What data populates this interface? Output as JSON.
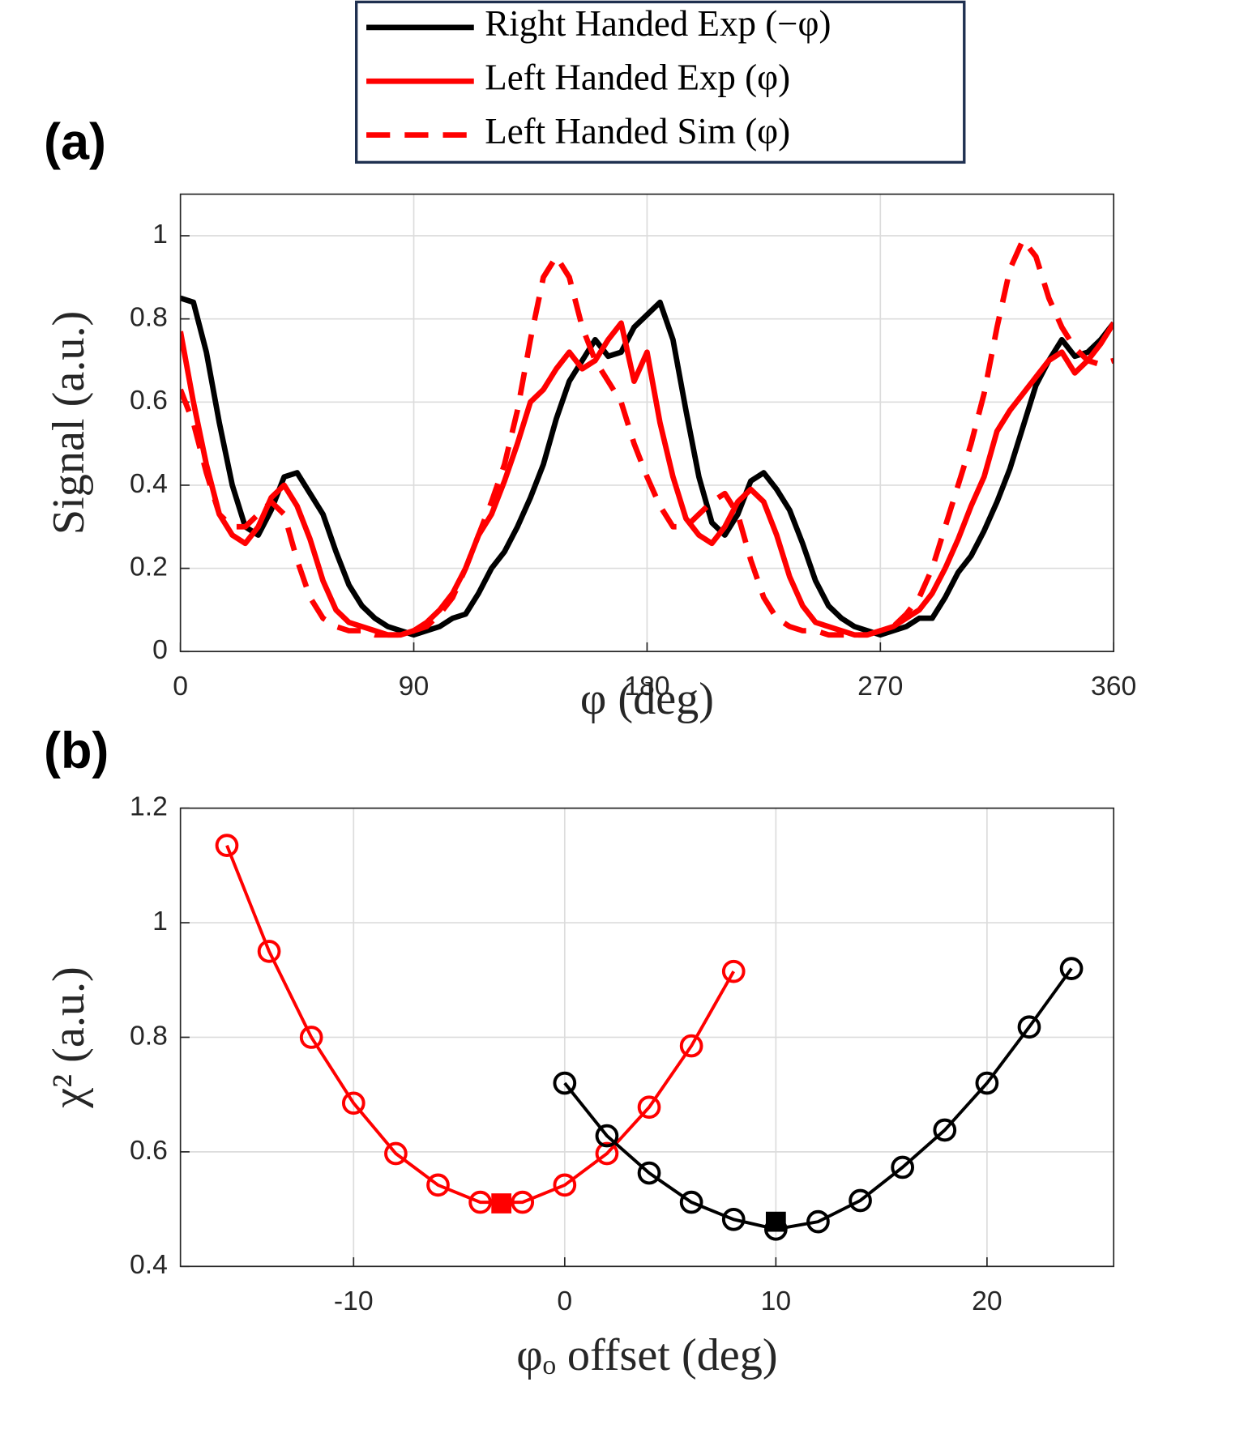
{
  "chart_data": [
    {
      "type": "line",
      "panel_label": "(a)",
      "x_label": "φ (deg)",
      "y_label": "Signal (a.u.)",
      "xlim": [
        0,
        360
      ],
      "ylim": [
        0,
        1.1
      ],
      "xticks": [
        0,
        90,
        180,
        270,
        360
      ],
      "yticks": [
        0,
        0.2,
        0.4,
        0.6,
        0.8,
        1
      ],
      "grid": true,
      "legend": "top",
      "x": [
        0,
        5,
        10,
        15,
        20,
        25,
        30,
        35,
        40,
        45,
        50,
        55,
        60,
        65,
        70,
        75,
        80,
        85,
        90,
        95,
        100,
        105,
        110,
        115,
        120,
        125,
        130,
        135,
        140,
        145,
        150,
        155,
        160,
        165,
        170,
        175,
        180,
        185,
        190,
        195,
        200,
        205,
        210,
        215,
        220,
        225,
        230,
        235,
        240,
        245,
        250,
        255,
        260,
        265,
        270,
        275,
        280,
        285,
        290,
        295,
        300,
        305,
        310,
        315,
        320,
        325,
        330,
        335,
        340,
        345,
        350,
        355,
        360
      ],
      "series": [
        {
          "name": "Right Handed Exp (−φ)",
          "color": "#000000",
          "style": "solid",
          "values": [
            0.85,
            0.84,
            0.72,
            0.55,
            0.4,
            0.3,
            0.28,
            0.34,
            0.42,
            0.43,
            0.38,
            0.33,
            0.24,
            0.16,
            0.11,
            0.08,
            0.06,
            0.05,
            0.04,
            0.05,
            0.06,
            0.08,
            0.09,
            0.14,
            0.2,
            0.24,
            0.3,
            0.37,
            0.45,
            0.56,
            0.65,
            0.7,
            0.75,
            0.71,
            0.72,
            0.78,
            0.81,
            0.84,
            0.75,
            0.58,
            0.42,
            0.31,
            0.28,
            0.33,
            0.41,
            0.43,
            0.39,
            0.34,
            0.26,
            0.17,
            0.11,
            0.08,
            0.06,
            0.05,
            0.04,
            0.05,
            0.06,
            0.08,
            0.08,
            0.13,
            0.19,
            0.23,
            0.29,
            0.36,
            0.44,
            0.54,
            0.64,
            0.7,
            0.75,
            0.71,
            0.72,
            0.75,
            0.79
          ]
        },
        {
          "name": "Left Handed Exp (φ)",
          "color": "#ff0000",
          "style": "solid",
          "values": [
            0.77,
            0.6,
            0.45,
            0.33,
            0.28,
            0.26,
            0.3,
            0.37,
            0.4,
            0.35,
            0.27,
            0.17,
            0.1,
            0.07,
            0.06,
            0.05,
            0.04,
            0.04,
            0.05,
            0.07,
            0.1,
            0.14,
            0.2,
            0.28,
            0.33,
            0.41,
            0.5,
            0.6,
            0.63,
            0.68,
            0.72,
            0.68,
            0.7,
            0.75,
            0.79,
            0.65,
            0.72,
            0.55,
            0.42,
            0.32,
            0.28,
            0.26,
            0.3,
            0.36,
            0.39,
            0.36,
            0.28,
            0.18,
            0.11,
            0.07,
            0.06,
            0.05,
            0.04,
            0.04,
            0.05,
            0.06,
            0.08,
            0.1,
            0.14,
            0.2,
            0.27,
            0.35,
            0.42,
            0.53,
            0.58,
            0.62,
            0.66,
            0.7,
            0.72,
            0.67,
            0.7,
            0.74,
            0.79
          ]
        },
        {
          "name": "Left Handed Sim (φ)",
          "color": "#ff0000",
          "style": "dashed",
          "values": [
            0.63,
            0.55,
            0.43,
            0.33,
            0.3,
            0.3,
            0.33,
            0.36,
            0.33,
            0.22,
            0.13,
            0.08,
            0.06,
            0.05,
            0.05,
            0.04,
            0.04,
            0.04,
            0.05,
            0.06,
            0.09,
            0.13,
            0.2,
            0.28,
            0.36,
            0.45,
            0.58,
            0.75,
            0.9,
            0.95,
            0.9,
            0.78,
            0.7,
            0.65,
            0.6,
            0.5,
            0.42,
            0.35,
            0.3,
            0.3,
            0.33,
            0.36,
            0.38,
            0.33,
            0.22,
            0.13,
            0.08,
            0.06,
            0.05,
            0.05,
            0.04,
            0.04,
            0.04,
            0.04,
            0.05,
            0.06,
            0.09,
            0.13,
            0.2,
            0.3,
            0.4,
            0.5,
            0.62,
            0.78,
            0.92,
            0.99,
            0.95,
            0.85,
            0.78,
            0.73,
            0.7,
            0.69,
            0.7
          ]
        }
      ]
    },
    {
      "type": "scatter",
      "panel_label": "(b)",
      "x_label": "φₒ offset (deg)",
      "y_label": "χ² (a.u.)",
      "xlim": [
        -18.2,
        26
      ],
      "ylim": [
        0.4,
        1.2
      ],
      "xticks": [
        -10,
        0,
        10,
        20
      ],
      "yticks": [
        0.4,
        0.6,
        0.8,
        1,
        1.2
      ],
      "grid": true,
      "series": [
        {
          "color": "#ff0000",
          "marker": "circle",
          "line": true,
          "x": [
            -16,
            -14,
            -12,
            -10,
            -8,
            -6,
            -4,
            -2,
            0,
            2,
            4,
            6,
            8
          ],
          "values": [
            1.135,
            0.95,
            0.8,
            0.685,
            0.597,
            0.542,
            0.512,
            0.512,
            0.542,
            0.597,
            0.678,
            0.785,
            0.915
          ]
        },
        {
          "color": "#000000",
          "marker": "circle",
          "line": true,
          "x": [
            0,
            2,
            4,
            6,
            8,
            10,
            12,
            14,
            16,
            18,
            20,
            22,
            24
          ],
          "values": [
            0.72,
            0.628,
            0.563,
            0.512,
            0.482,
            0.465,
            0.478,
            0.515,
            0.573,
            0.638,
            0.72,
            0.818,
            0.92
          ]
        },
        {
          "color": "#ff0000",
          "marker": "square",
          "line": false,
          "x": [
            -3
          ],
          "values": [
            0.51
          ]
        },
        {
          "color": "#000000",
          "marker": "square",
          "line": false,
          "x": [
            10
          ],
          "values": [
            0.478
          ]
        }
      ]
    }
  ]
}
